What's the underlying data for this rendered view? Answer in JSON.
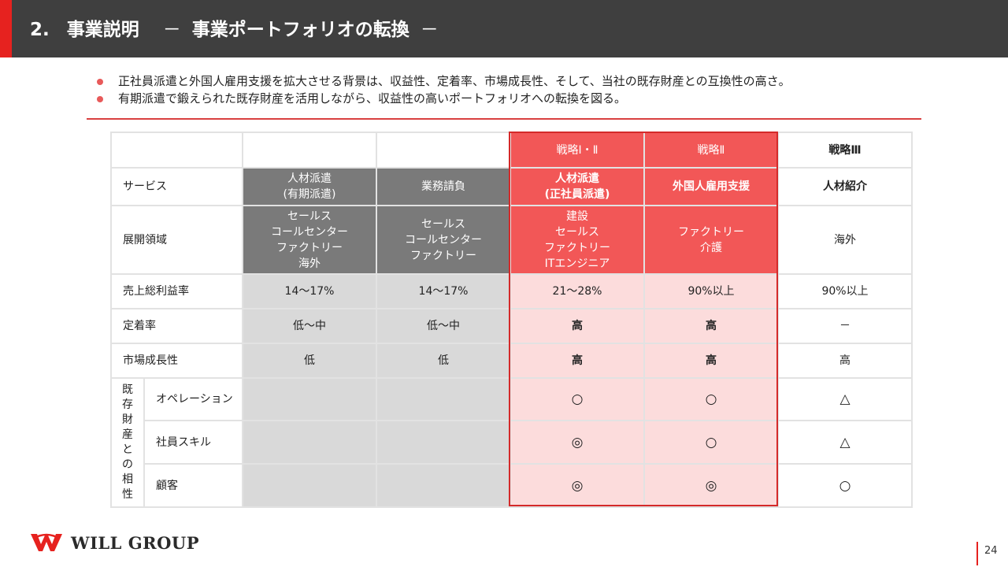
{
  "header": {
    "number": "2.",
    "title": "事業説明",
    "dash": "－",
    "subtitle": "事業ポートフォリオの転換",
    "dash2": "－"
  },
  "bullets": [
    "正社員派遣と外国人雇用支援を拡大させる背景は、収益性、定着率、市場成長性、そして、当社の既存財産との互換性の高さ。",
    "有期派遣で鍛えられた既存財産を活用しながら、収益性の高いポートフォリオへの転換を図る。"
  ],
  "table": {
    "headers": [
      "",
      "",
      "戦略Ⅰ・Ⅱ",
      "戦略Ⅱ",
      "戦略Ⅲ"
    ],
    "service": {
      "label": "サービス",
      "cells": [
        "人材派遣\n(有期派遣)",
        "業務請負",
        "人材派遣\n(正社員派遣)",
        "外国人雇用支援",
        "人材紹介"
      ]
    },
    "domain": {
      "label": "展開領域",
      "cells": [
        "セールス\nコールセンター\nファクトリー\n海外",
        "セールス\nコールセンター\nファクトリー",
        "建設\nセールス\nファクトリー\nITエンジニア",
        "ファクトリー\n介護",
        "海外"
      ]
    },
    "margin": {
      "label": "売上総利益率",
      "cells": [
        "14～17%",
        "14～17%",
        "21～28%",
        "90%以上",
        "90%以上"
      ]
    },
    "retention": {
      "label": "定着率",
      "cells": [
        "低～中",
        "低～中",
        "高",
        "高",
        "－"
      ]
    },
    "growth": {
      "label": "市場成長性",
      "cells": [
        "低",
        "低",
        "高",
        "高",
        "高"
      ]
    },
    "compat": {
      "label": "既存財産との相性",
      "rows": [
        {
          "label": "オペレーション",
          "cells": [
            "",
            "",
            "○",
            "○",
            "△"
          ]
        },
        {
          "label": "社員スキル",
          "cells": [
            "",
            "",
            "◎",
            "○",
            "△"
          ]
        },
        {
          "label": "顧客",
          "cells": [
            "",
            "",
            "◎",
            "◎",
            "○"
          ]
        }
      ]
    }
  },
  "footer": {
    "logo": "WILL GROUP",
    "page": "24"
  },
  "colors": {
    "accent": "#e6221f",
    "header_bg": "#3f3f3f",
    "strategy_red": "#f25757",
    "strategy_pink": "#fcdcdc",
    "dark_gray": "#7a7a7a",
    "light_gray": "#d9d9d9"
  }
}
